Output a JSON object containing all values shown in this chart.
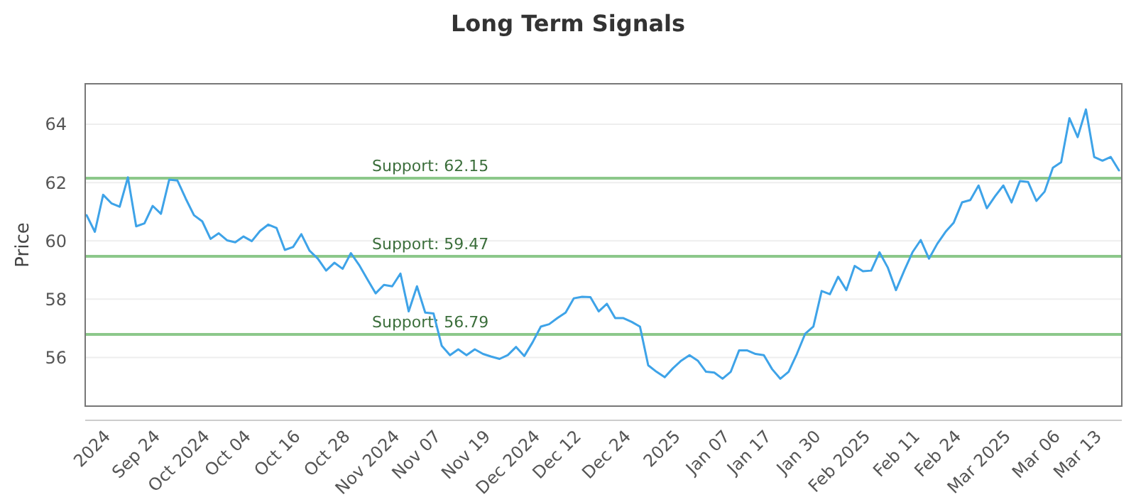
{
  "chart_data": {
    "type": "line",
    "title": "Long Term Signals",
    "ylabel": "Price",
    "categories": [
      null,
      null,
      null,
      "2024",
      null,
      null,
      null,
      null,
      null,
      "Sep 24",
      null,
      null,
      null,
      null,
      null,
      "Oct 2024",
      null,
      null,
      null,
      null,
      "Oct 04",
      null,
      null,
      null,
      null,
      null,
      "Oct 16",
      null,
      null,
      null,
      null,
      null,
      "Oct 28",
      null,
      null,
      null,
      null,
      null,
      "Nov 2024",
      null,
      null,
      null,
      null,
      "Nov 07",
      null,
      null,
      null,
      null,
      null,
      "Nov 19",
      null,
      null,
      null,
      null,
      null,
      "Dec 2024",
      null,
      null,
      null,
      null,
      "Dec 12",
      null,
      null,
      null,
      null,
      null,
      "Dec 24",
      null,
      null,
      null,
      null,
      null,
      "2025",
      null,
      null,
      null,
      null,
      null,
      "Jan 07",
      null,
      null,
      null,
      null,
      "Jan 17",
      null,
      null,
      null,
      null,
      null,
      "Jan 30",
      null,
      null,
      null,
      null,
      null,
      "Feb 2025",
      null,
      null,
      null,
      null,
      null,
      "Feb 11",
      null,
      null,
      null,
      null,
      "Feb 24",
      null,
      null,
      null,
      null,
      null,
      "Mar 2025",
      null,
      null,
      null,
      null,
      null,
      "Mar 06",
      null,
      null,
      null,
      null,
      "Mar 13",
      null,
      null
    ],
    "series": [
      {
        "color": "#3ea3e8",
        "values": [
          60.88,
          60.31,
          61.58,
          61.29,
          61.17,
          62.18,
          60.5,
          60.6,
          61.2,
          60.93,
          62.1,
          62.07,
          61.45,
          60.88,
          60.67,
          60.07,
          60.26,
          60.02,
          59.95,
          60.15,
          59.99,
          60.34,
          60.56,
          60.44,
          59.69,
          59.79,
          60.23,
          59.66,
          59.39,
          58.98,
          59.25,
          59.04,
          59.58,
          59.17,
          58.68,
          58.2,
          58.49,
          58.44,
          58.88,
          57.58,
          58.44,
          57.54,
          57.51,
          56.4,
          56.08,
          56.28,
          56.08,
          56.28,
          56.12,
          56.03,
          55.95,
          56.08,
          56.36,
          56.05,
          56.52,
          57.06,
          57.14,
          57.35,
          57.54,
          58.03,
          58.08,
          58.07,
          57.58,
          57.84,
          57.35,
          57.35,
          57.22,
          57.06,
          55.73,
          55.51,
          55.32,
          55.63,
          55.89,
          56.08,
          55.89,
          55.51,
          55.48,
          55.27,
          55.51,
          56.24,
          56.24,
          56.12,
          56.08,
          55.6,
          55.27,
          55.51,
          56.12,
          56.81,
          57.06,
          58.28,
          58.17,
          58.77,
          58.31,
          59.14,
          58.96,
          58.98,
          59.61,
          59.09,
          58.31,
          58.98,
          59.61,
          60.03,
          59.39,
          59.9,
          60.31,
          60.63,
          61.32,
          61.4,
          61.9,
          61.12,
          61.53,
          61.9,
          61.32,
          62.05,
          62.02,
          61.37,
          61.69,
          62.51,
          62.7,
          64.21,
          63.56,
          64.51,
          62.88,
          62.75,
          62.88,
          62.42
        ]
      }
    ],
    "ylim": [
      54.33,
      65.39
    ],
    "yticks": [
      56,
      58,
      60,
      62,
      64
    ],
    "grid": "y",
    "ref_lines": [
      {
        "axis": "y",
        "value": 62.15,
        "label": "Support: 62.15",
        "color": "#8cc88a"
      },
      {
        "axis": "y",
        "value": 59.47,
        "label": "Support: 59.47",
        "color": "#8cc88a"
      },
      {
        "axis": "y",
        "value": 56.79,
        "label": "Support: 56.79",
        "color": "#8cc88a"
      }
    ]
  }
}
